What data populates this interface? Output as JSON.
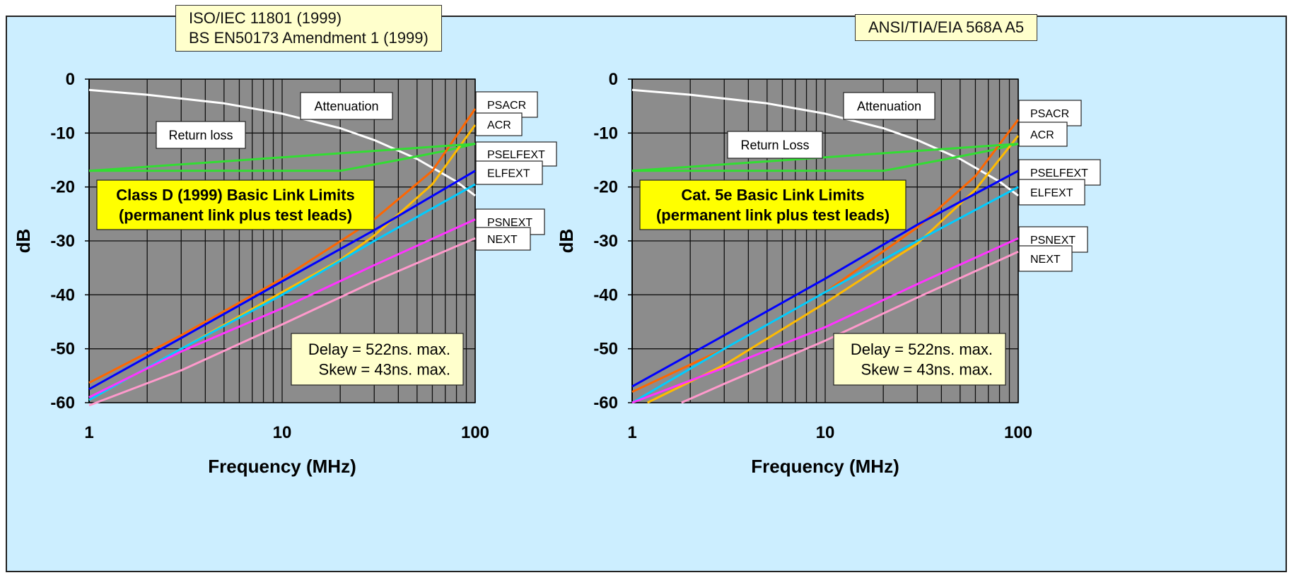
{
  "panels": [
    {
      "standard_lines": [
        "ISO/IEC 11801 (1999)",
        "BS EN50173 Amendment 1 (1999)"
      ],
      "callout_lines": [
        "Class D (1999) Basic Link Limits",
        "(permanent link plus test leads)"
      ],
      "delay_lines": [
        "Delay = 522ns. max.",
        "Skew = 43ns. max."
      ],
      "curve_labels": {
        "attenuation": "Attenuation",
        "return_loss": "Return loss"
      }
    },
    {
      "standard_lines": [
        "ANSI/TIA/EIA 568A A5"
      ],
      "callout_lines": [
        "Cat. 5e Basic Link Limits",
        "(permanent link plus test leads)"
      ],
      "delay_lines": [
        "Delay = 522ns. max.",
        "Skew = 43ns. max."
      ],
      "curve_labels": {
        "attenuation": "Attenuation",
        "return_loss": "Return Loss"
      }
    }
  ],
  "colors": {
    "background": "#cceeff",
    "plot_area": "#8c8c8c",
    "grid": "#111111",
    "label_box": "#ffffcc",
    "callout_box": "#ffff00"
  },
  "chart_data": [
    {
      "type": "line",
      "xlabel": "Frequency (MHz)",
      "ylabel": "dB",
      "xscale": "log",
      "xlim": [
        1,
        100
      ],
      "ylim": [
        -60,
        0
      ],
      "x_ticks": [
        "1",
        "10",
        "100"
      ],
      "y_ticks": [
        "0",
        "-10",
        "-20",
        "-30",
        "-40",
        "-50",
        "-60"
      ],
      "grid": true,
      "series": [
        {
          "name": "Attenuation",
          "color": "#ffffff",
          "x": [
            1,
            2,
            5,
            10,
            20,
            30,
            50,
            80,
            100
          ],
          "y": [
            -2,
            -2.9,
            -4.5,
            -6.4,
            -9.1,
            -11.3,
            -14.8,
            -19,
            -21.6
          ]
        },
        {
          "name": "Return loss",
          "color": "#33dd33",
          "x": [
            1,
            20,
            40,
            70,
            100
          ],
          "y": [
            -17,
            -17,
            -15,
            -13.3,
            -12
          ]
        },
        {
          "name": "PSACR",
          "color": "#ff6600",
          "x": [
            1,
            3,
            10,
            30,
            60,
            100
          ],
          "y": [
            -56.3,
            -47.5,
            -37,
            -26,
            -17,
            -5.5
          ]
        },
        {
          "name": "ACR",
          "color": "#ffbb00",
          "x": [
            1,
            3,
            10,
            20,
            30,
            60,
            100
          ],
          "y": [
            -59.5,
            -50,
            -39.5,
            -33.5,
            -29,
            -19.5,
            -8.5
          ]
        },
        {
          "name": "PSELFEXT",
          "color": "#33dd33",
          "x": [
            1,
            100
          ],
          "y": [
            -17,
            -12
          ]
        },
        {
          "name": "ELFEXT",
          "color": "#0000ff",
          "x": [
            1,
            3,
            10,
            30,
            100
          ],
          "y": [
            -57.5,
            -48,
            -37.5,
            -28,
            -17
          ]
        },
        {
          "name": "PSNEXT",
          "color": "#00ccff",
          "x": [
            1,
            3,
            10,
            30,
            100
          ],
          "y": [
            -59.5,
            -50,
            -40,
            -30,
            -19.5
          ]
        },
        {
          "name": "NEXT",
          "color": "#ff33ff",
          "x": [
            1,
            3,
            10,
            30,
            100
          ],
          "y": [
            -59,
            -50.5,
            -42.5,
            -34.5,
            -26
          ]
        },
        {
          "name": "NEXT",
          "color": "#ff99cc",
          "x": [
            1,
            3,
            10,
            30,
            100
          ],
          "y": [
            -60.5,
            -54,
            -45.5,
            -37.5,
            -29.5
          ]
        }
      ]
    },
    {
      "type": "line",
      "xlabel": "Frequency (MHz)",
      "ylabel": "dB",
      "xscale": "log",
      "xlim": [
        1,
        100
      ],
      "ylim": [
        -60,
        0
      ],
      "x_ticks": [
        "1",
        "10",
        "100"
      ],
      "y_ticks": [
        "0",
        "-10",
        "-20",
        "-30",
        "-40",
        "-50",
        "-60"
      ],
      "grid": true,
      "series": [
        {
          "name": "Attenuation",
          "color": "#ffffff",
          "x": [
            1,
            2,
            5,
            10,
            20,
            30,
            50,
            80,
            100
          ],
          "y": [
            -2,
            -2.9,
            -4.5,
            -6.4,
            -9.1,
            -11.3,
            -14.8,
            -19,
            -21.6
          ]
        },
        {
          "name": "Return Loss",
          "color": "#33dd33",
          "x": [
            1,
            20,
            40,
            70,
            100
          ],
          "y": [
            -17,
            -17,
            -15,
            -13.3,
            -12
          ]
        },
        {
          "name": "PSACR",
          "color": "#ff6600",
          "x": [
            1,
            3,
            10,
            30,
            60,
            100
          ],
          "y": [
            -58,
            -50,
            -39.5,
            -27.5,
            -18,
            -7.5
          ]
        },
        {
          "name": "ACR",
          "color": "#ffbb00",
          "x": [
            1.2,
            3,
            10,
            20,
            30,
            60,
            100
          ],
          "y": [
            -60,
            -53,
            -41.5,
            -34.5,
            -30.5,
            -20.5,
            -10.5
          ]
        },
        {
          "name": "PSELFEXT",
          "color": "#33dd33",
          "x": [
            1,
            100
          ],
          "y": [
            -17,
            -12
          ]
        },
        {
          "name": "ELFEXT",
          "color": "#0000ff",
          "x": [
            1,
            3,
            10,
            30,
            100
          ],
          "y": [
            -57,
            -47.5,
            -37,
            -27,
            -17
          ]
        },
        {
          "name": "PSNEXT",
          "color": "#00ccff",
          "x": [
            1,
            3,
            10,
            30,
            100
          ],
          "y": [
            -60,
            -50,
            -39.5,
            -30,
            -20
          ]
        },
        {
          "name": "NEXT",
          "color": "#ff33ff",
          "x": [
            1,
            3,
            10,
            30,
            100
          ],
          "y": [
            -60,
            -53.5,
            -46,
            -38,
            -29.5
          ]
        },
        {
          "name": "NEXT",
          "color": "#ff99cc",
          "x": [
            1.8,
            3,
            10,
            30,
            100
          ],
          "y": [
            -60,
            -56.5,
            -48.5,
            -40.5,
            -32
          ]
        }
      ]
    }
  ]
}
